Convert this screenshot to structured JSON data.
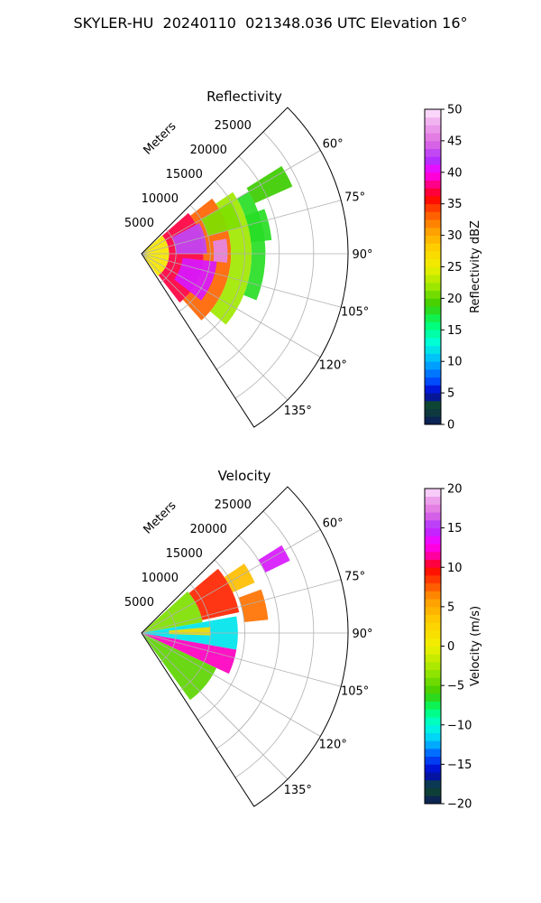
{
  "figure": {
    "title": "SKYLER-HU  20240110  021348.036 UTC Elevation 16°"
  },
  "chart_data": [
    {
      "type": "heatmap",
      "title": "Reflectivity",
      "range_axis_label": "Meters",
      "range_ticks": [
        "5000",
        "10000",
        "15000",
        "20000",
        "25000"
      ],
      "range_tick_values": [
        5000,
        10000,
        15000,
        20000,
        25000
      ],
      "range_max": 30000,
      "azimuth_range_deg": [
        45,
        147
      ],
      "azimuth_ticks": [
        "60°",
        "75°",
        "90°",
        "105°",
        "120°",
        "135°"
      ],
      "azimuth_tick_values": [
        60,
        75,
        90,
        105,
        120,
        135
      ],
      "grid": true,
      "colorbar": {
        "label": "Reflectivity dBZ",
        "min": 0,
        "max": 50,
        "ticks": [
          "0",
          "5",
          "10",
          "15",
          "20",
          "25",
          "30",
          "35",
          "40",
          "45",
          "50"
        ],
        "tick_values": [
          0,
          5,
          10,
          15,
          20,
          25,
          30,
          35,
          40,
          45,
          50
        ],
        "stops": [
          {
            "value": 0,
            "color": "#0b1a5e"
          },
          {
            "value": 3,
            "color": "#0f4b2a"
          },
          {
            "value": 5,
            "color": "#0000c8"
          },
          {
            "value": 7,
            "color": "#0050ff"
          },
          {
            "value": 10,
            "color": "#00b4ff"
          },
          {
            "value": 13,
            "color": "#00ffd8"
          },
          {
            "value": 16,
            "color": "#00ff70"
          },
          {
            "value": 19,
            "color": "#3ccc00"
          },
          {
            "value": 22,
            "color": "#a0e800"
          },
          {
            "value": 25,
            "color": "#f0f000"
          },
          {
            "value": 28,
            "color": "#ffd000"
          },
          {
            "value": 31,
            "color": "#ff9a00"
          },
          {
            "value": 34,
            "color": "#ff4a00"
          },
          {
            "value": 36,
            "color": "#ff0000"
          },
          {
            "value": 38,
            "color": "#ff0080"
          },
          {
            "value": 40,
            "color": "#ff00ff"
          },
          {
            "value": 42,
            "color": "#b030ff"
          },
          {
            "value": 45,
            "color": "#e070e0"
          },
          {
            "value": 48,
            "color": "#f0b0f0"
          },
          {
            "value": 50,
            "color": "#ffe8ff"
          }
        ]
      },
      "echo_cells": [
        {
          "az": [
            48,
            144
          ],
          "r": [
            0,
            4000
          ],
          "value": 26
        },
        {
          "az": [
            49,
            142
          ],
          "r": [
            4000,
            9000
          ],
          "value": 37
        },
        {
          "az": [
            52,
            138
          ],
          "r": [
            9000,
            13000
          ],
          "value": 33
        },
        {
          "az": [
            56,
            130
          ],
          "r": [
            13000,
            16000
          ],
          "value": 22
        },
        {
          "az": [
            60,
            112
          ],
          "r": [
            16000,
            18000
          ],
          "value": 18
        },
        {
          "az": [
            58,
            66
          ],
          "r": [
            18000,
            24000
          ],
          "value": 19
        },
        {
          "az": [
            70,
            84
          ],
          "r": [
            16000,
            19000
          ],
          "value": 18
        },
        {
          "az": [
            62,
            90
          ],
          "r": [
            5000,
            9500
          ],
          "value": 43
        },
        {
          "az": [
            96,
            128
          ],
          "r": [
            6000,
            11000
          ],
          "value": 41
        },
        {
          "az": [
            80,
            96
          ],
          "r": [
            10500,
            12500
          ],
          "value": 46
        },
        {
          "az": [
            60,
            75
          ],
          "r": [
            10000,
            15000
          ],
          "value": 21
        }
      ]
    },
    {
      "type": "heatmap",
      "title": "Velocity",
      "range_axis_label": "Meters",
      "range_ticks": [
        "5000",
        "10000",
        "15000",
        "20000",
        "25000"
      ],
      "range_tick_values": [
        5000,
        10000,
        15000,
        20000,
        25000
      ],
      "range_max": 30000,
      "azimuth_range_deg": [
        45,
        147
      ],
      "azimuth_ticks": [
        "60°",
        "75°",
        "90°",
        "105°",
        "120°",
        "135°"
      ],
      "azimuth_tick_values": [
        60,
        75,
        90,
        105,
        120,
        135
      ],
      "grid": true,
      "colorbar": {
        "label": "Velocity (m/s)",
        "min": -20,
        "max": 20,
        "ticks": [
          "−20",
          "−15",
          "−10",
          "−5",
          "0",
          "5",
          "10",
          "15",
          "20"
        ],
        "tick_values": [
          -20,
          -15,
          -10,
          -5,
          0,
          5,
          10,
          15,
          20
        ],
        "stops": [
          {
            "value": -20,
            "color": "#0b1a5e"
          },
          {
            "value": -18,
            "color": "#0f4b2a"
          },
          {
            "value": -16,
            "color": "#0000c8"
          },
          {
            "value": -14,
            "color": "#0050ff"
          },
          {
            "value": -12,
            "color": "#00c8ff"
          },
          {
            "value": -10,
            "color": "#00ffd8"
          },
          {
            "value": -8,
            "color": "#00ff70"
          },
          {
            "value": -6,
            "color": "#3ccc00"
          },
          {
            "value": -3,
            "color": "#a0e800"
          },
          {
            "value": 0,
            "color": "#f0f000"
          },
          {
            "value": 3,
            "color": "#ffd000"
          },
          {
            "value": 6,
            "color": "#ff9a00"
          },
          {
            "value": 8,
            "color": "#ff4a00"
          },
          {
            "value": 10,
            "color": "#ff0000"
          },
          {
            "value": 11,
            "color": "#ff0080"
          },
          {
            "value": 13,
            "color": "#ff00ff"
          },
          {
            "value": 15,
            "color": "#b030ff"
          },
          {
            "value": 17,
            "color": "#e070e0"
          },
          {
            "value": 19,
            "color": "#f0b0f0"
          },
          {
            "value": 20,
            "color": "#ffe8ff"
          }
        ]
      },
      "echo_cells": [
        {
          "az": [
            48,
            80
          ],
          "r": [
            0,
            9000
          ],
          "value": -4
        },
        {
          "az": [
            80,
            100
          ],
          "r": [
            0,
            14000
          ],
          "value": -11
        },
        {
          "az": [
            100,
            115
          ],
          "r": [
            0,
            14000
          ],
          "value": 12
        },
        {
          "az": [
            115,
            144
          ],
          "r": [
            0,
            12000
          ],
          "value": -5
        },
        {
          "az": [
            50,
            78
          ],
          "r": [
            9000,
            14500
          ],
          "value": 9
        },
        {
          "az": [
            56,
            66
          ],
          "r": [
            14500,
            18000
          ],
          "value": 4
        },
        {
          "az": [
            58,
            64
          ],
          "r": [
            20000,
            24000
          ],
          "value": 14
        },
        {
          "az": [
            70,
            84
          ],
          "r": [
            15000,
            18500
          ],
          "value": 7
        },
        {
          "az": [
            85,
            92
          ],
          "r": [
            4000,
            10000
          ],
          "value": 2
        }
      ]
    }
  ]
}
